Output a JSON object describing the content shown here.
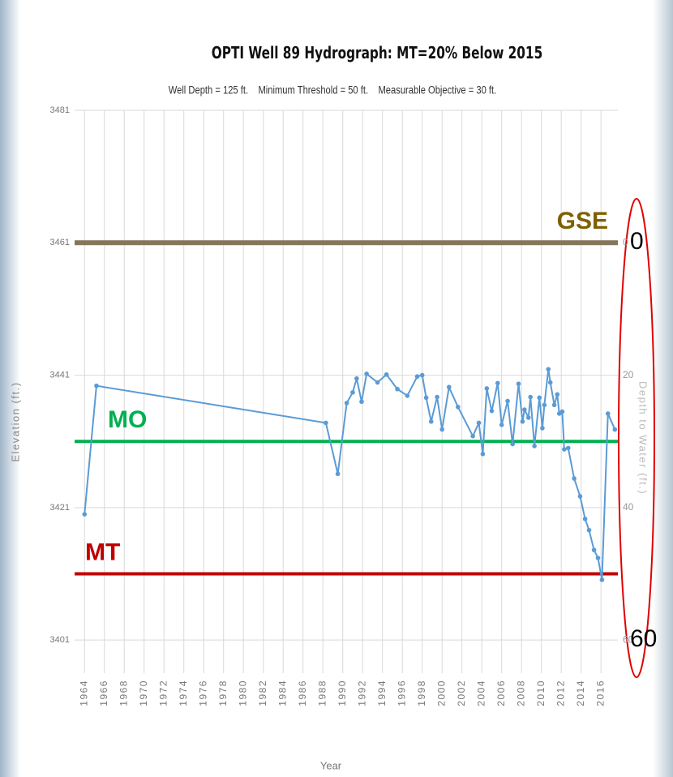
{
  "chart_data": {
    "type": "line",
    "title": "OPTI Well 89 Hydrograph: MT=20% Below 2015",
    "subtitle": "Well Depth = 125 ft.    Minimum Threshold = 50 ft.    Measurable Objective = 30 ft.",
    "x_label": "Year",
    "y_label": "Elevation (ft.)",
    "y2_label": "Depth to Water (ft.)",
    "x": [
      1964.0,
      1965.2,
      1988.3,
      1989.5,
      1990.4,
      1991.0,
      1991.4,
      1991.9,
      1992.4,
      1993.5,
      1994.4,
      1995.5,
      1996.5,
      1997.5,
      1998.0,
      1998.4,
      1998.9,
      1999.5,
      2000.0,
      2000.7,
      2001.6,
      2003.1,
      2003.7,
      2004.1,
      2004.5,
      2005.0,
      2005.6,
      2006.0,
      2006.6,
      2007.1,
      2007.7,
      2008.1,
      2008.3,
      2008.7,
      2008.9,
      2009.3,
      2009.8,
      2010.1,
      2010.3,
      2010.7,
      2010.9,
      2011.3,
      2011.6,
      2011.8,
      2012.1,
      2012.3,
      2012.7,
      2013.3,
      2013.9,
      2014.4,
      2014.8,
      2015.3,
      2015.7,
      2016.1,
      2016.7,
      2017.4
    ],
    "series": [
      {
        "color": "#5b9bd5",
        "values": [
          3420.0,
          3439.4,
          3433.8,
          3426.1,
          3436.8,
          3438.4,
          3440.5,
          3437.0,
          3441.2,
          3439.9,
          3441.1,
          3438.9,
          3437.9,
          3440.8,
          3441.0,
          3437.6,
          3434.0,
          3437.7,
          3432.8,
          3439.2,
          3436.2,
          3431.8,
          3433.8,
          3429.1,
          3439.0,
          3435.6,
          3439.8,
          3433.5,
          3437.1,
          3430.6,
          3439.7,
          3434.0,
          3435.8,
          3434.6,
          3437.7,
          3430.3,
          3437.6,
          3433.0,
          3436.5,
          3441.9,
          3439.9,
          3436.5,
          3438.1,
          3435.2,
          3435.5,
          3429.8,
          3430.0,
          3425.4,
          3422.7,
          3419.3,
          3417.6,
          3414.6,
          3413.4,
          3410.1,
          3435.2,
          3432.8
        ]
      }
    ],
    "xlim": [
      1963,
      2017.7
    ],
    "xticks": [
      1964,
      1966,
      1968,
      1970,
      1972,
      1974,
      1976,
      1978,
      1980,
      1982,
      1984,
      1986,
      1988,
      1990,
      1992,
      1994,
      1996,
      1998,
      2000,
      2002,
      2004,
      2006,
      2008,
      2010,
      2012,
      2014,
      2016
    ],
    "ylim": [
      3396,
      3481
    ],
    "yticks": [
      3401,
      3421,
      3441,
      3461,
      3481
    ],
    "y2lim": [
      -20,
      65
    ],
    "y2_inverted": true,
    "y2ticks": [
      0,
      20,
      40,
      60
    ],
    "y2_highlight_ticks": [
      0,
      60
    ],
    "grid": true,
    "reference_lines": [
      {
        "label": "GSE",
        "value": 3461,
        "color": "#7f6000",
        "line_color": "#85765a",
        "side": "right"
      },
      {
        "label": "MO",
        "value": 3431,
        "color": "#00b050",
        "line_color": "#00b050",
        "side": "left"
      },
      {
        "label": "MT",
        "value": 3411,
        "color": "#c00000",
        "line_color": "#c00000",
        "side": "left"
      }
    ]
  }
}
